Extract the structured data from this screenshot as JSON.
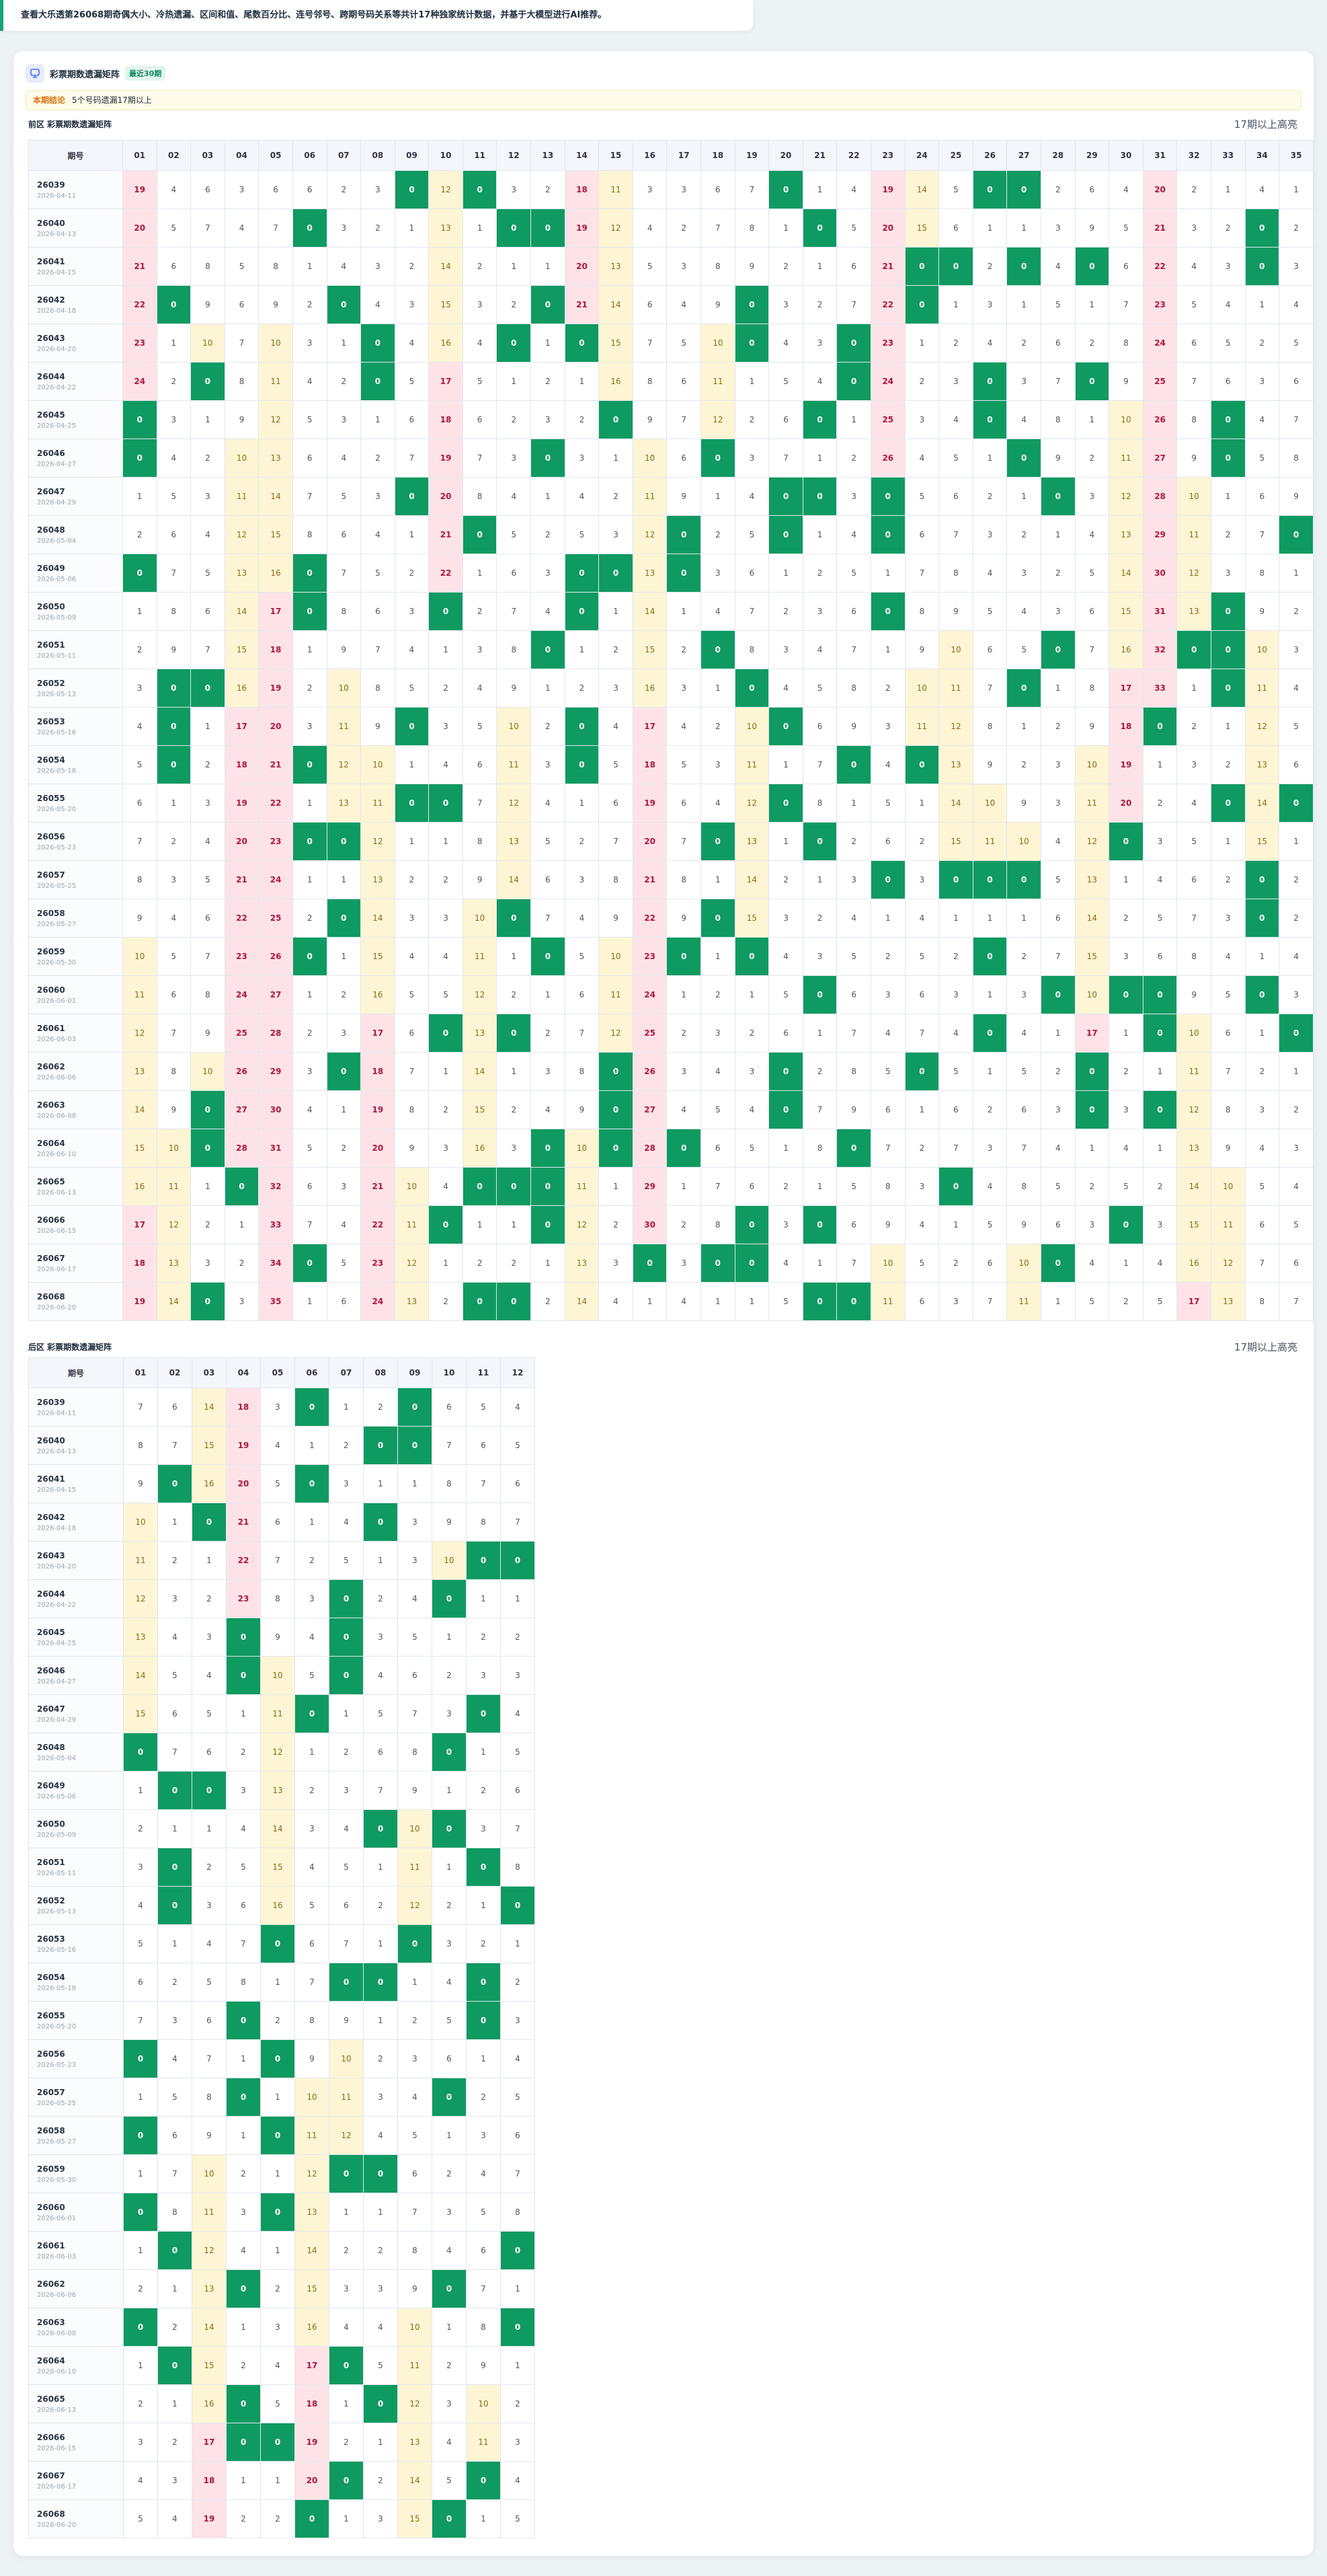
{
  "banner": "查看大乐透第26068期奇偶大小、冷热遗漏、区间和值、尾数百分比、连号邻号、跨期号码关系等共计17种独家统计数据，并基于大模型进行AI推荐。",
  "card": {
    "title": "彩票期数遗漏矩阵",
    "badge": "最近30期",
    "notice_label": "本期结论",
    "notice_text": "5个号码遗漏17期以上"
  },
  "periods": [
    {
      "issue": "26039",
      "date": "2026-04-11"
    },
    {
      "issue": "26040",
      "date": "2026-04-13"
    },
    {
      "issue": "26041",
      "date": "2026-04-15"
    },
    {
      "issue": "26042",
      "date": "2026-04-18"
    },
    {
      "issue": "26043",
      "date": "2026-04-20"
    },
    {
      "issue": "26044",
      "date": "2026-04-22"
    },
    {
      "issue": "26045",
      "date": "2026-04-25"
    },
    {
      "issue": "26046",
      "date": "2026-04-27"
    },
    {
      "issue": "26047",
      "date": "2026-04-29"
    },
    {
      "issue": "26048",
      "date": "2026-05-04"
    },
    {
      "issue": "26049",
      "date": "2026-05-06"
    },
    {
      "issue": "26050",
      "date": "2026-05-09"
    },
    {
      "issue": "26051",
      "date": "2026-05-11"
    },
    {
      "issue": "26052",
      "date": "2026-05-13"
    },
    {
      "issue": "26053",
      "date": "2026-05-16"
    },
    {
      "issue": "26054",
      "date": "2026-05-18"
    },
    {
      "issue": "26055",
      "date": "2026-05-20"
    },
    {
      "issue": "26056",
      "date": "2026-05-23"
    },
    {
      "issue": "26057",
      "date": "2026-05-25"
    },
    {
      "issue": "26058",
      "date": "2026-05-27"
    },
    {
      "issue": "26059",
      "date": "2026-05-30"
    },
    {
      "issue": "26060",
      "date": "2026-06-01"
    },
    {
      "issue": "26061",
      "date": "2026-06-03"
    },
    {
      "issue": "26062",
      "date": "2026-06-06"
    },
    {
      "issue": "26063",
      "date": "2026-06-08"
    },
    {
      "issue": "26064",
      "date": "2026-06-10"
    },
    {
      "issue": "26065",
      "date": "2026-06-13"
    },
    {
      "issue": "26066",
      "date": "2026-06-15"
    },
    {
      "issue": "26067",
      "date": "2026-06-17"
    },
    {
      "issue": "26068",
      "date": "2026-06-20"
    }
  ],
  "front": {
    "title": "前区 彩票期数遗漏矩阵",
    "note": "17期以上高亮",
    "header": "期号",
    "columns": [
      "01",
      "02",
      "03",
      "04",
      "05",
      "06",
      "07",
      "08",
      "09",
      "10",
      "11",
      "12",
      "13",
      "14",
      "15",
      "16",
      "17",
      "18",
      "19",
      "20",
      "21",
      "22",
      "23",
      "24",
      "25",
      "26",
      "27",
      "28",
      "29",
      "30",
      "31",
      "32",
      "33",
      "34",
      "35"
    ],
    "values": [
      [
        19,
        4,
        6,
        3,
        6,
        6,
        2,
        3,
        0,
        12,
        0,
        3,
        2,
        18,
        11,
        3,
        3,
        6,
        7,
        0,
        1,
        4,
        19,
        14,
        5,
        0,
        0,
        2,
        6,
        4,
        20,
        2,
        1,
        4,
        1
      ],
      [
        20,
        5,
        7,
        4,
        7,
        0,
        3,
        2,
        1,
        13,
        1,
        0,
        0,
        19,
        12,
        4,
        2,
        7,
        8,
        1,
        0,
        5,
        20,
        15,
        6,
        1,
        1,
        3,
        9,
        5,
        21,
        3,
        2,
        0,
        2
      ],
      [
        21,
        6,
        8,
        5,
        8,
        1,
        4,
        3,
        2,
        14,
        2,
        1,
        1,
        20,
        13,
        5,
        3,
        8,
        9,
        2,
        1,
        6,
        21,
        0,
        0,
        2,
        0,
        4,
        0,
        6,
        22,
        4,
        3,
        0,
        3
      ],
      [
        22,
        0,
        9,
        6,
        9,
        2,
        0,
        4,
        3,
        15,
        3,
        2,
        0,
        21,
        14,
        6,
        4,
        9,
        0,
        3,
        2,
        7,
        22,
        0,
        1,
        3,
        1,
        5,
        1,
        7,
        23,
        5,
        4,
        1,
        4
      ],
      [
        23,
        1,
        10,
        7,
        10,
        3,
        1,
        0,
        4,
        16,
        4,
        0,
        1,
        0,
        15,
        7,
        5,
        10,
        0,
        4,
        3,
        0,
        23,
        1,
        2,
        4,
        2,
        6,
        2,
        8,
        24,
        6,
        5,
        2,
        5
      ],
      [
        24,
        2,
        0,
        8,
        11,
        4,
        2,
        0,
        5,
        17,
        5,
        1,
        2,
        1,
        16,
        8,
        6,
        11,
        1,
        5,
        4,
        0,
        24,
        2,
        3,
        0,
        3,
        7,
        0,
        9,
        25,
        7,
        6,
        3,
        6
      ],
      [
        0,
        3,
        1,
        9,
        12,
        5,
        3,
        1,
        6,
        18,
        6,
        2,
        3,
        2,
        0,
        9,
        7,
        12,
        2,
        6,
        0,
        1,
        25,
        3,
        4,
        0,
        4,
        8,
        1,
        10,
        26,
        8,
        0,
        4,
        7
      ],
      [
        0,
        4,
        2,
        10,
        13,
        6,
        4,
        2,
        7,
        19,
        7,
        3,
        0,
        3,
        1,
        10,
        6,
        0,
        3,
        7,
        1,
        2,
        26,
        4,
        5,
        1,
        0,
        9,
        2,
        11,
        27,
        9,
        0,
        5,
        8
      ],
      [
        1,
        5,
        3,
        11,
        14,
        7,
        5,
        3,
        0,
        20,
        8,
        4,
        1,
        4,
        2,
        11,
        9,
        1,
        4,
        0,
        0,
        3,
        0,
        5,
        6,
        2,
        1,
        0,
        3,
        12,
        28,
        10,
        1,
        6,
        9
      ],
      [
        2,
        6,
        4,
        12,
        15,
        8,
        6,
        4,
        1,
        21,
        0,
        5,
        2,
        5,
        3,
        12,
        0,
        2,
        5,
        0,
        1,
        4,
        0,
        6,
        7,
        3,
        2,
        1,
        4,
        13,
        29,
        11,
        2,
        7,
        0
      ],
      [
        0,
        7,
        5,
        13,
        16,
        0,
        7,
        5,
        2,
        22,
        1,
        6,
        3,
        0,
        0,
        13,
        0,
        3,
        6,
        1,
        2,
        5,
        1,
        7,
        8,
        4,
        3,
        2,
        5,
        14,
        30,
        12,
        3,
        8,
        1
      ],
      [
        1,
        8,
        6,
        14,
        17,
        0,
        8,
        6,
        3,
        0,
        2,
        7,
        4,
        0,
        1,
        14,
        1,
        4,
        7,
        2,
        3,
        6,
        0,
        8,
        9,
        5,
        4,
        3,
        6,
        15,
        31,
        13,
        0,
        9,
        2
      ],
      [
        2,
        9,
        7,
        15,
        18,
        1,
        9,
        7,
        4,
        1,
        3,
        8,
        0,
        1,
        2,
        15,
        2,
        0,
        8,
        3,
        4,
        7,
        1,
        9,
        10,
        6,
        5,
        0,
        7,
        16,
        32,
        0,
        0,
        10,
        3
      ],
      [
        3,
        0,
        0,
        16,
        19,
        2,
        10,
        8,
        5,
        2,
        4,
        9,
        1,
        2,
        3,
        16,
        3,
        1,
        0,
        4,
        5,
        8,
        2,
        10,
        11,
        7,
        0,
        1,
        8,
        17,
        33,
        1,
        0,
        11,
        4
      ],
      [
        4,
        0,
        1,
        17,
        20,
        3,
        11,
        9,
        0,
        3,
        5,
        10,
        2,
        0,
        4,
        17,
        4,
        2,
        10,
        0,
        6,
        9,
        3,
        11,
        12,
        8,
        1,
        2,
        9,
        18,
        0,
        2,
        1,
        12,
        5
      ],
      [
        5,
        0,
        2,
        18,
        21,
        0,
        12,
        10,
        1,
        4,
        6,
        11,
        3,
        0,
        5,
        18,
        5,
        3,
        11,
        1,
        7,
        0,
        4,
        0,
        13,
        9,
        2,
        3,
        10,
        19,
        1,
        3,
        2,
        13,
        6
      ],
      [
        6,
        1,
        3,
        19,
        22,
        1,
        13,
        11,
        0,
        0,
        7,
        12,
        4,
        1,
        6,
        19,
        6,
        4,
        12,
        0,
        8,
        1,
        5,
        1,
        14,
        10,
        9,
        3,
        11,
        20,
        2,
        4,
        0,
        14,
        0
      ],
      [
        7,
        2,
        4,
        20,
        23,
        0,
        0,
        12,
        1,
        1,
        8,
        13,
        5,
        2,
        7,
        20,
        7,
        0,
        13,
        1,
        0,
        2,
        6,
        2,
        15,
        11,
        10,
        4,
        12,
        0,
        3,
        5,
        1,
        15,
        1
      ],
      [
        8,
        3,
        5,
        21,
        24,
        1,
        1,
        13,
        2,
        2,
        9,
        14,
        6,
        3,
        8,
        21,
        8,
        1,
        14,
        2,
        1,
        3,
        0,
        3,
        0,
        0,
        0,
        5,
        13,
        1,
        4,
        6,
        2,
        0,
        2
      ],
      [
        9,
        4,
        6,
        22,
        25,
        2,
        0,
        14,
        3,
        3,
        10,
        0,
        7,
        4,
        9,
        22,
        9,
        0,
        15,
        3,
        2,
        4,
        1,
        4,
        1,
        1,
        1,
        6,
        14,
        2,
        5,
        7,
        3,
        0,
        2
      ],
      [
        10,
        5,
        7,
        23,
        26,
        0,
        1,
        15,
        4,
        4,
        11,
        1,
        0,
        5,
        10,
        23,
        0,
        1,
        0,
        4,
        3,
        5,
        2,
        5,
        2,
        0,
        2,
        7,
        15,
        3,
        6,
        8,
        4,
        1,
        4
      ],
      [
        11,
        6,
        8,
        24,
        27,
        1,
        2,
        16,
        5,
        5,
        12,
        2,
        1,
        6,
        11,
        24,
        1,
        2,
        1,
        5,
        0,
        6,
        3,
        6,
        3,
        1,
        3,
        0,
        10,
        0,
        0,
        9,
        5,
        0,
        3
      ],
      [
        12,
        7,
        9,
        25,
        28,
        2,
        3,
        17,
        6,
        0,
        13,
        0,
        2,
        7,
        12,
        25,
        2,
        3,
        2,
        6,
        1,
        7,
        4,
        7,
        4,
        0,
        4,
        1,
        17,
        1,
        0,
        10,
        6,
        1,
        0
      ],
      [
        13,
        8,
        10,
        26,
        29,
        3,
        0,
        18,
        7,
        1,
        14,
        1,
        3,
        8,
        0,
        26,
        3,
        4,
        3,
        0,
        2,
        8,
        5,
        0,
        5,
        1,
        5,
        2,
        0,
        2,
        1,
        11,
        7,
        2,
        1
      ],
      [
        14,
        9,
        0,
        27,
        30,
        4,
        1,
        19,
        8,
        2,
        15,
        2,
        4,
        9,
        0,
        27,
        4,
        5,
        4,
        0,
        7,
        9,
        6,
        1,
        6,
        2,
        6,
        3,
        0,
        3,
        0,
        12,
        8,
        3,
        2
      ],
      [
        15,
        10,
        0,
        28,
        31,
        5,
        2,
        20,
        9,
        3,
        16,
        3,
        0,
        10,
        0,
        28,
        0,
        6,
        5,
        1,
        8,
        0,
        7,
        2,
        7,
        3,
        7,
        4,
        1,
        4,
        1,
        13,
        9,
        4,
        3
      ],
      [
        16,
        11,
        1,
        0,
        32,
        6,
        3,
        21,
        10,
        4,
        0,
        0,
        0,
        11,
        1,
        29,
        1,
        7,
        6,
        2,
        1,
        5,
        8,
        3,
        0,
        4,
        8,
        5,
        2,
        5,
        2,
        14,
        10,
        5,
        4
      ],
      [
        17,
        12,
        2,
        1,
        33,
        7,
        4,
        22,
        11,
        0,
        1,
        1,
        0,
        12,
        2,
        30,
        2,
        8,
        0,
        3,
        0,
        6,
        9,
        4,
        1,
        5,
        9,
        6,
        3,
        0,
        3,
        15,
        11,
        6,
        5
      ],
      [
        18,
        13,
        3,
        2,
        34,
        0,
        5,
        23,
        12,
        1,
        2,
        2,
        1,
        13,
        3,
        0,
        3,
        0,
        0,
        4,
        1,
        7,
        10,
        5,
        2,
        6,
        10,
        0,
        4,
        1,
        4,
        16,
        12,
        7,
        6
      ],
      [
        19,
        14,
        0,
        3,
        35,
        1,
        6,
        24,
        13,
        2,
        0,
        0,
        2,
        14,
        4,
        1,
        4,
        1,
        1,
        5,
        0,
        0,
        11,
        6,
        3,
        7,
        11,
        1,
        5,
        2,
        5,
        17,
        13,
        8,
        7
      ]
    ]
  },
  "back": {
    "title": "后区 彩票期数遗漏矩阵",
    "note": "17期以上高亮",
    "header": "期号",
    "columns": [
      "01",
      "02",
      "03",
      "04",
      "05",
      "06",
      "07",
      "08",
      "09",
      "10",
      "11",
      "12"
    ],
    "values": [
      [
        7,
        6,
        14,
        18,
        3,
        0,
        1,
        2,
        0,
        6,
        5,
        4
      ],
      [
        8,
        7,
        15,
        19,
        4,
        1,
        2,
        0,
        0,
        7,
        6,
        5
      ],
      [
        9,
        0,
        16,
        20,
        5,
        0,
        3,
        1,
        1,
        8,
        7,
        6
      ],
      [
        10,
        1,
        0,
        21,
        6,
        1,
        4,
        0,
        3,
        9,
        8,
        7
      ],
      [
        11,
        2,
        1,
        22,
        7,
        2,
        5,
        1,
        3,
        10,
        0,
        0
      ],
      [
        12,
        3,
        2,
        23,
        8,
        3,
        0,
        2,
        4,
        0,
        1,
        1
      ],
      [
        13,
        4,
        3,
        0,
        9,
        4,
        0,
        3,
        5,
        1,
        2,
        2
      ],
      [
        14,
        5,
        4,
        0,
        10,
        5,
        0,
        4,
        6,
        2,
        3,
        3
      ],
      [
        15,
        6,
        5,
        1,
        11,
        0,
        1,
        5,
        7,
        3,
        0,
        4
      ],
      [
        0,
        7,
        6,
        2,
        12,
        1,
        2,
        6,
        8,
        0,
        1,
        5
      ],
      [
        1,
        0,
        0,
        3,
        13,
        2,
        3,
        7,
        9,
        1,
        2,
        6
      ],
      [
        2,
        1,
        1,
        4,
        14,
        3,
        4,
        0,
        10,
        0,
        3,
        7
      ],
      [
        3,
        0,
        2,
        5,
        15,
        4,
        5,
        1,
        11,
        1,
        0,
        8
      ],
      [
        4,
        0,
        3,
        6,
        16,
        5,
        6,
        2,
        12,
        2,
        1,
        0
      ],
      [
        5,
        1,
        4,
        7,
        0,
        6,
        7,
        1,
        0,
        3,
        2,
        1
      ],
      [
        6,
        2,
        5,
        8,
        1,
        7,
        0,
        0,
        1,
        4,
        0,
        2
      ],
      [
        7,
        3,
        6,
        0,
        2,
        8,
        9,
        1,
        2,
        5,
        0,
        3
      ],
      [
        0,
        4,
        7,
        1,
        0,
        9,
        10,
        2,
        3,
        6,
        1,
        4
      ],
      [
        1,
        5,
        8,
        0,
        1,
        10,
        11,
        3,
        4,
        0,
        2,
        5
      ],
      [
        0,
        6,
        9,
        1,
        0,
        11,
        12,
        4,
        5,
        1,
        3,
        6
      ],
      [
        1,
        7,
        10,
        2,
        1,
        12,
        0,
        0,
        6,
        2,
        4,
        7
      ],
      [
        0,
        8,
        11,
        3,
        0,
        13,
        1,
        1,
        7,
        3,
        5,
        8
      ],
      [
        1,
        0,
        12,
        4,
        1,
        14,
        2,
        2,
        8,
        4,
        6,
        0
      ],
      [
        2,
        1,
        13,
        0,
        2,
        15,
        3,
        3,
        9,
        0,
        7,
        1
      ],
      [
        0,
        2,
        14,
        1,
        3,
        16,
        4,
        4,
        10,
        1,
        8,
        0
      ],
      [
        1,
        0,
        15,
        2,
        4,
        17,
        0,
        5,
        11,
        2,
        9,
        1
      ],
      [
        2,
        1,
        16,
        0,
        5,
        18,
        1,
        0,
        12,
        3,
        10,
        2
      ],
      [
        3,
        2,
        17,
        0,
        0,
        19,
        2,
        1,
        13,
        4,
        11,
        3
      ],
      [
        4,
        3,
        18,
        1,
        1,
        20,
        0,
        2,
        14,
        5,
        0,
        4
      ],
      [
        5,
        4,
        19,
        2,
        2,
        0,
        1,
        3,
        15,
        0,
        1,
        5
      ]
    ]
  }
}
